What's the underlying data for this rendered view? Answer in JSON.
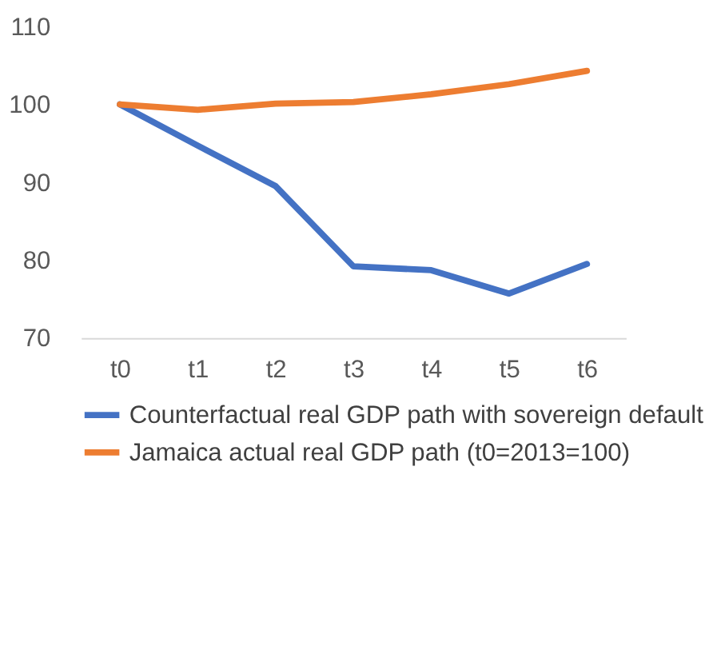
{
  "chart_data": {
    "type": "line",
    "categories": [
      "t0",
      "t1",
      "t2",
      "t3",
      "t4",
      "t5",
      "t6"
    ],
    "series": [
      {
        "name": "Counterfactual real GDP path with sovereign default",
        "color": "#4472c4",
        "values": [
          100,
          94.7,
          89.5,
          79.2,
          78.7,
          75.7,
          79.5
        ]
      },
      {
        "name": "Jamaica actual real GDP path (t0=2013=100)",
        "color": "#ed7d31",
        "values": [
          100,
          99.3,
          100.1,
          100.3,
          101.3,
          102.6,
          104.3
        ]
      }
    ],
    "ylim": [
      70,
      110
    ],
    "yticks": [
      70,
      80,
      90,
      100,
      110
    ],
    "grid": false,
    "legend": "bottom",
    "marker": "none",
    "line_style": "solid"
  }
}
